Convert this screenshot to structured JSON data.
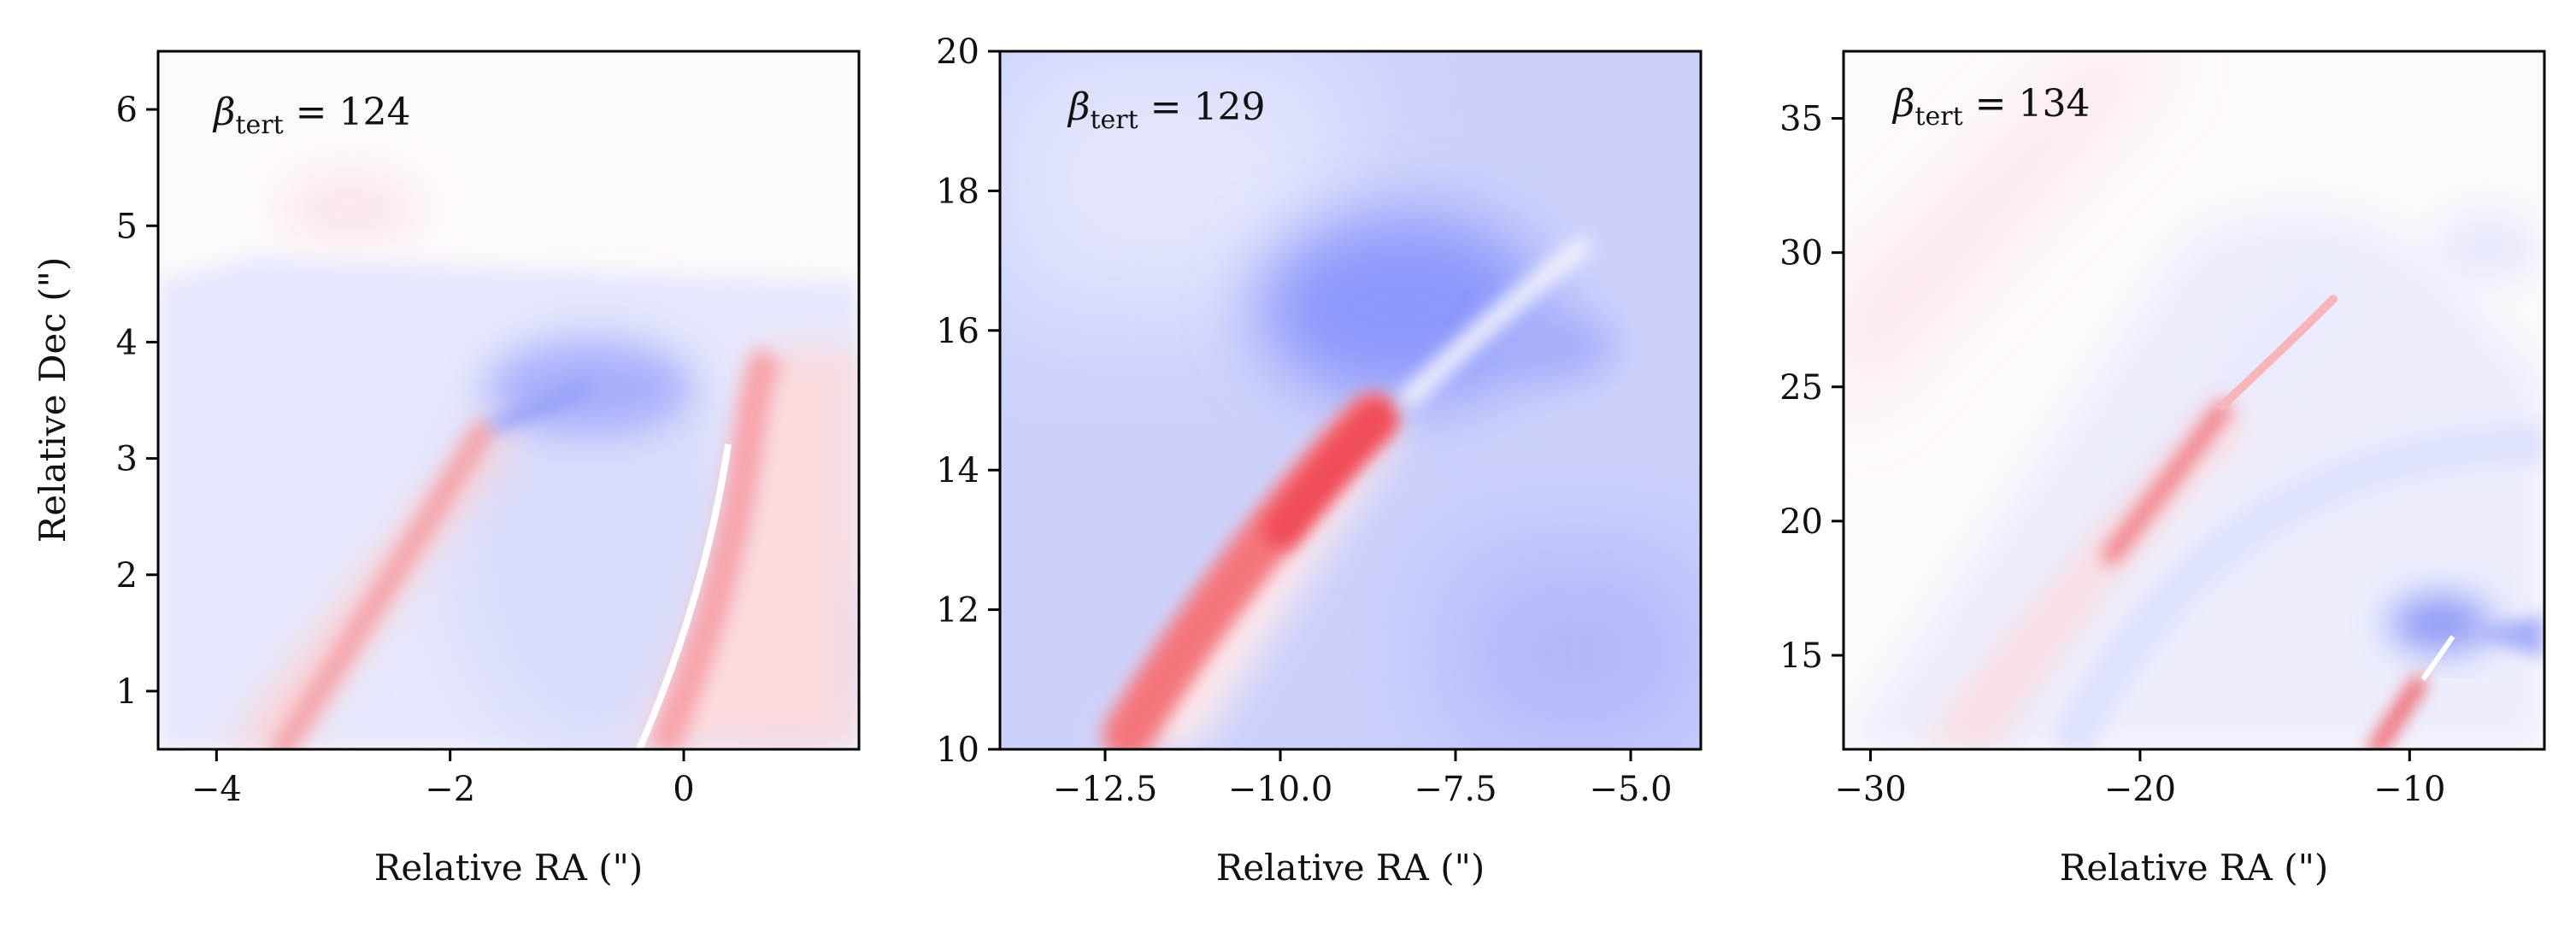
{
  "chart_data": [
    {
      "type": "heatmap",
      "title": "",
      "xlabel": "Relative RA (\")",
      "ylabel": "Relative Dec (\")",
      "xlim": [
        -4.5,
        1.5
      ],
      "ylim": [
        0.5,
        6.5
      ],
      "xticks": [
        -4,
        -2,
        0
      ],
      "xtick_labels": [
        "−4",
        "−2",
        "0"
      ],
      "yticks": [
        1,
        2,
        3,
        4,
        5,
        6
      ],
      "ytick_labels": [
        "1",
        "2",
        "3",
        "4",
        "5",
        "6"
      ],
      "annotation": {
        "symbol": "β",
        "subscript": "tert",
        "rest": " = 124"
      },
      "colormap": "bwr",
      "colors": {
        "negative": "#8a96ff",
        "positive": "#ff4a4a",
        "zero": "#ffffff"
      }
    },
    {
      "type": "heatmap",
      "title": "",
      "xlabel": "Relative RA (\")",
      "ylabel": "",
      "xlim": [
        -14,
        -4
      ],
      "ylim": [
        10,
        20
      ],
      "xticks": [
        -12.5,
        -10,
        -7.5,
        -5
      ],
      "xtick_labels": [
        "−12.5",
        "−10.0",
        "−7.5",
        "−5.0"
      ],
      "yticks": [
        10,
        12,
        14,
        16,
        18,
        20
      ],
      "ytick_labels": [
        "10",
        "12",
        "14",
        "16",
        "18",
        "20"
      ],
      "annotation": {
        "symbol": "β",
        "subscript": "tert",
        "rest": " = 129"
      },
      "colormap": "bwr",
      "colors": {
        "negative": "#8a96ff",
        "positive": "#ff4a4a",
        "zero": "#ffffff"
      }
    },
    {
      "type": "heatmap",
      "title": "",
      "xlabel": "Relative RA (\")",
      "ylabel": "",
      "xlim": [
        -31,
        -5
      ],
      "ylim": [
        11.5,
        37.5
      ],
      "xticks": [
        -30,
        -20,
        -10
      ],
      "xtick_labels": [
        "−30",
        "−20",
        "−10"
      ],
      "yticks": [
        15,
        20,
        25,
        30,
        35
      ],
      "ytick_labels": [
        "15",
        "20",
        "25",
        "30",
        "35"
      ],
      "annotation": {
        "symbol": "β",
        "subscript": "tert",
        "rest": " = 134"
      },
      "colormap": "bwr",
      "colors": {
        "negative": "#8a96ff",
        "positive": "#ff4a4a",
        "zero": "#ffffff"
      }
    }
  ]
}
